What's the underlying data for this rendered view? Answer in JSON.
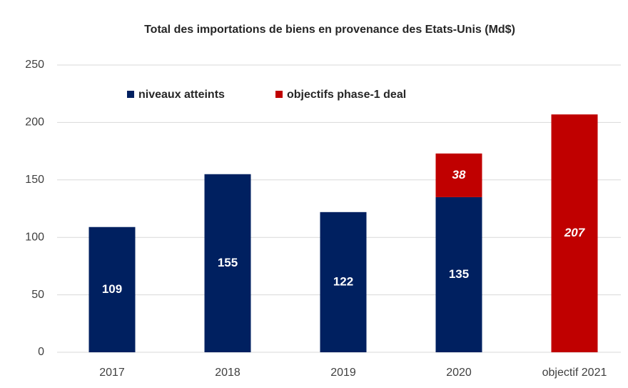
{
  "chart_data": {
    "type": "bar",
    "stacked": true,
    "title": "Total des importations de biens en provenance des Etats-Unis (Md$)",
    "categories": [
      "2017",
      "2018",
      "2019",
      "2020",
      "objectif 2021"
    ],
    "series": [
      {
        "name": "niveaux atteints",
        "color": "#002060",
        "values": [
          109,
          155,
          122,
          135,
          null
        ]
      },
      {
        "name": "objectifs phase-1 deal",
        "color": "#c00000",
        "values": [
          null,
          null,
          null,
          38,
          207
        ]
      }
    ],
    "ylim": [
      0,
      250
    ],
    "yticks": [
      0,
      50,
      100,
      150,
      200,
      250
    ],
    "grid": true
  }
}
